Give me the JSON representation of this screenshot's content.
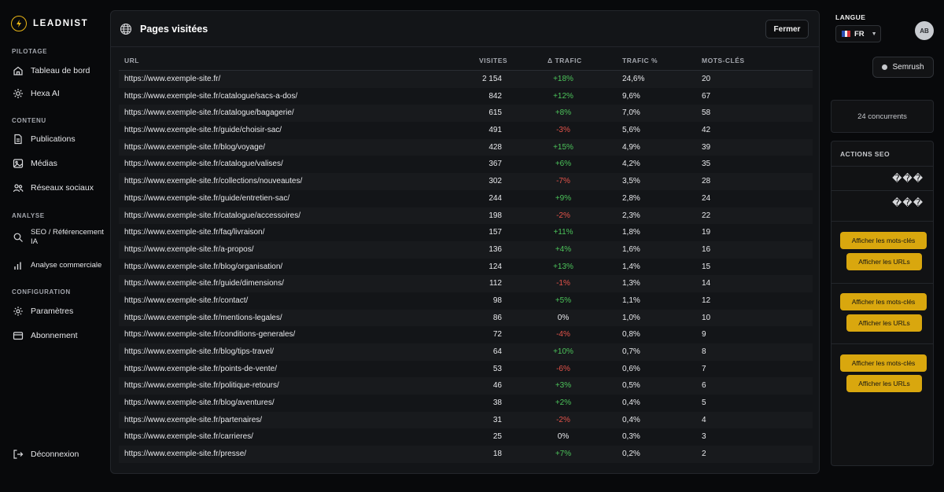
{
  "brand": {
    "name": "LEADNIST",
    "accent": "#e8b516"
  },
  "sidebar": {
    "sections": {
      "pilotage": "PILOTAGE",
      "contenu": "CONTENU",
      "analyse": "ANALYSE",
      "configuration": "CONFIGURATION"
    },
    "items": {
      "tableau": {
        "label": "Tableau de bord",
        "icon": "home-icon"
      },
      "hexa": {
        "label": "Hexa AI",
        "icon": "sparkle-icon"
      },
      "publications": {
        "label": "Publications",
        "icon": "document-icon"
      },
      "medias": {
        "label": "Médias",
        "icon": "image-icon"
      },
      "reseaux": {
        "label": "Réseaux sociaux",
        "icon": "users-icon"
      },
      "seo": {
        "label": "SEO / Référencement IA",
        "icon": "search-icon"
      },
      "commerciale": {
        "label": "Analyse commerciale",
        "icon": "bar-chart-icon"
      },
      "parametres": {
        "label": "Paramètres",
        "icon": "gear-icon"
      },
      "abonnement": {
        "label": "Abonnement",
        "icon": "card-icon"
      }
    },
    "logout": {
      "label": "Déconnexion",
      "icon": "logout-icon"
    }
  },
  "modal": {
    "title": "Pages visitées",
    "close_label": "Fermer",
    "columns": {
      "url": "URL",
      "visites": "VISITES",
      "delta": "Δ TRAFIC",
      "pct": "TRAFIC %",
      "kw": "MOTS-CLÉS"
    },
    "rows": [
      {
        "url": "https://www.exemple-site.fr/",
        "visites": "2 154",
        "delta": "+18%",
        "trend": "pos",
        "pct": "24,6%",
        "kw": "20"
      },
      {
        "url": "https://www.exemple-site.fr/catalogue/sacs-a-dos/",
        "visites": "842",
        "delta": "+12%",
        "trend": "pos",
        "pct": "9,6%",
        "kw": "67"
      },
      {
        "url": "https://www.exemple-site.fr/catalogue/bagagerie/",
        "visites": "615",
        "delta": "+8%",
        "trend": "pos",
        "pct": "7,0%",
        "kw": "58"
      },
      {
        "url": "https://www.exemple-site.fr/guide/choisir-sac/",
        "visites": "491",
        "delta": "-3%",
        "trend": "neg",
        "pct": "5,6%",
        "kw": "42"
      },
      {
        "url": "https://www.exemple-site.fr/blog/voyage/",
        "visites": "428",
        "delta": "+15%",
        "trend": "pos",
        "pct": "4,9%",
        "kw": "39"
      },
      {
        "url": "https://www.exemple-site.fr/catalogue/valises/",
        "visites": "367",
        "delta": "+6%",
        "trend": "pos",
        "pct": "4,2%",
        "kw": "35"
      },
      {
        "url": "https://www.exemple-site.fr/collections/nouveautes/",
        "visites": "302",
        "delta": "-7%",
        "trend": "neg",
        "pct": "3,5%",
        "kw": "28"
      },
      {
        "url": "https://www.exemple-site.fr/guide/entretien-sac/",
        "visites": "244",
        "delta": "+9%",
        "trend": "pos",
        "pct": "2,8%",
        "kw": "24"
      },
      {
        "url": "https://www.exemple-site.fr/catalogue/accessoires/",
        "visites": "198",
        "delta": "-2%",
        "trend": "neg",
        "pct": "2,3%",
        "kw": "22"
      },
      {
        "url": "https://www.exemple-site.fr/faq/livraison/",
        "visites": "157",
        "delta": "+11%",
        "trend": "pos",
        "pct": "1,8%",
        "kw": "19"
      },
      {
        "url": "https://www.exemple-site.fr/a-propos/",
        "visites": "136",
        "delta": "+4%",
        "trend": "pos",
        "pct": "1,6%",
        "kw": "16"
      },
      {
        "url": "https://www.exemple-site.fr/blog/organisation/",
        "visites": "124",
        "delta": "+13%",
        "trend": "pos",
        "pct": "1,4%",
        "kw": "15"
      },
      {
        "url": "https://www.exemple-site.fr/guide/dimensions/",
        "visites": "112",
        "delta": "-1%",
        "trend": "neg",
        "pct": "1,3%",
        "kw": "14"
      },
      {
        "url": "https://www.exemple-site.fr/contact/",
        "visites": "98",
        "delta": "+5%",
        "trend": "pos",
        "pct": "1,1%",
        "kw": "12"
      },
      {
        "url": "https://www.exemple-site.fr/mentions-legales/",
        "visites": "86",
        "delta": "0%",
        "trend": "neu",
        "pct": "1,0%",
        "kw": "10"
      },
      {
        "url": "https://www.exemple-site.fr/conditions-generales/",
        "visites": "72",
        "delta": "-4%",
        "trend": "neg",
        "pct": "0,8%",
        "kw": "9"
      },
      {
        "url": "https://www.exemple-site.fr/blog/tips-travel/",
        "visites": "64",
        "delta": "+10%",
        "trend": "pos",
        "pct": "0,7%",
        "kw": "8"
      },
      {
        "url": "https://www.exemple-site.fr/points-de-vente/",
        "visites": "53",
        "delta": "-6%",
        "trend": "neg",
        "pct": "0,6%",
        "kw": "7"
      },
      {
        "url": "https://www.exemple-site.fr/politique-retours/",
        "visites": "46",
        "delta": "+3%",
        "trend": "pos",
        "pct": "0,5%",
        "kw": "6"
      },
      {
        "url": "https://www.exemple-site.fr/blog/aventures/",
        "visites": "38",
        "delta": "+2%",
        "trend": "pos",
        "pct": "0,4%",
        "kw": "5"
      },
      {
        "url": "https://www.exemple-site.fr/partenaires/",
        "visites": "31",
        "delta": "-2%",
        "trend": "neg",
        "pct": "0,4%",
        "kw": "4"
      },
      {
        "url": "https://www.exemple-site.fr/carrieres/",
        "visites": "25",
        "delta": "0%",
        "trend": "neu",
        "pct": "0,3%",
        "kw": "3"
      },
      {
        "url": "https://www.exemple-site.fr/presse/",
        "visites": "18",
        "delta": "+7%",
        "trend": "pos",
        "pct": "0,2%",
        "kw": "2"
      }
    ],
    "colors": {
      "positive": "#4cc35a",
      "negative": "#e4534a"
    }
  },
  "header": {
    "langue_label": "LANGUE",
    "lang_code": "FR",
    "avatar": "AB"
  },
  "right": {
    "semrush_label": "Semrush",
    "concurrents": "24 concurrents",
    "seo_title": "ACTIONS SEO",
    "glyph_text": "���",
    "btn_keywords": "Afficher les mots-clés",
    "btn_urls": "Afficher les URLs",
    "button_color": "#d9a70e"
  }
}
